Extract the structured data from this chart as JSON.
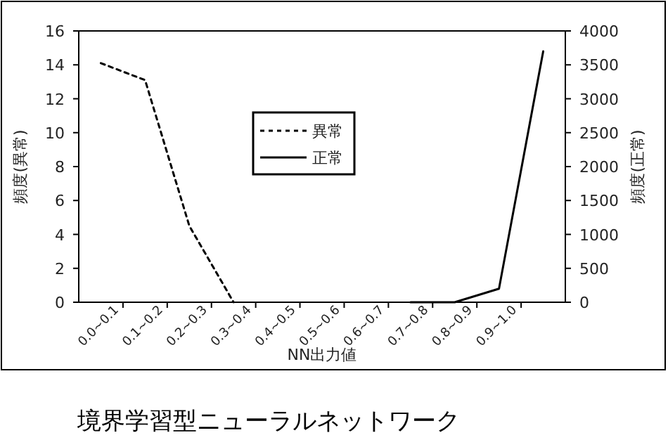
{
  "chart_data": {
    "type": "line",
    "xlabel": "NN出力値",
    "ylabel": "頻度(異常)",
    "y2label": "頻度(正常)",
    "categories": [
      "0.0~0.1",
      "0.1~0.2",
      "0.2~0.3",
      "0.3~0.4",
      "0.4~0.5",
      "0.5~0.6",
      "0.6~0.7",
      "0.7~0.8",
      "0.8~0.9",
      "0.9~1.0",
      null
    ],
    "series": [
      {
        "name": "異常",
        "color": "#000000",
        "line_style": "dashed",
        "values": [
          14.1,
          13.1,
          4.5,
          0,
          null,
          null,
          null,
          null,
          null,
          null,
          null
        ]
      },
      {
        "name": "正常",
        "color": "#000000",
        "line_style": "solid",
        "axis": "y2",
        "values": [
          null,
          null,
          null,
          null,
          null,
          null,
          null,
          0,
          0,
          200,
          3700
        ]
      }
    ],
    "ylim": [
      0,
      16
    ],
    "yticks": [
      0,
      2,
      4,
      6,
      8,
      10,
      12,
      14,
      16
    ],
    "y2lim": [
      0,
      4000
    ],
    "y2ticks": [
      0,
      500,
      1000,
      1500,
      2000,
      2500,
      3000,
      3500,
      4000
    ],
    "legend": "top",
    "grid": false,
    "marker": "none",
    "annotations": [
      "境界学習型ニューラルネットワーク"
    ]
  }
}
